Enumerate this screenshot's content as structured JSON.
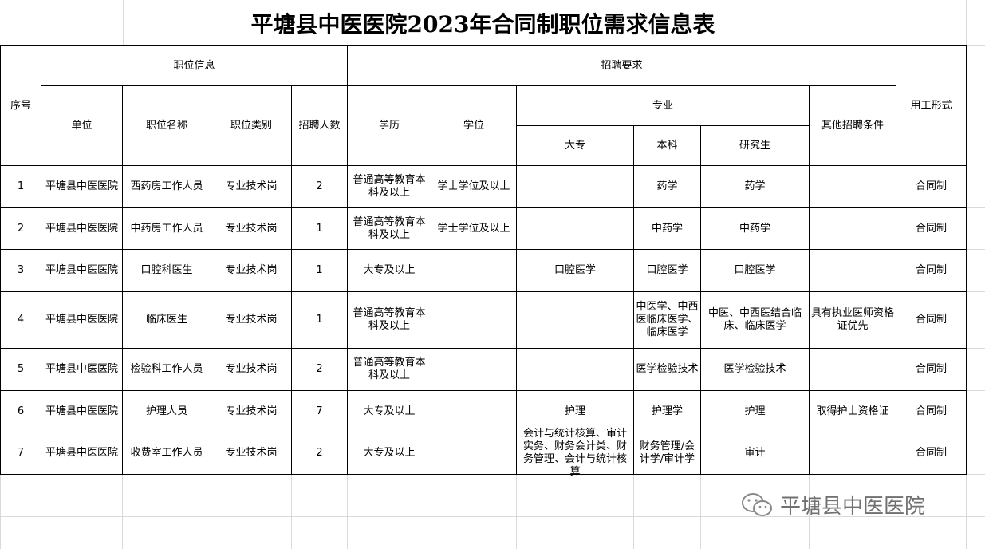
{
  "title": "平塘县中医医院2023年合同制职位需求信息表",
  "header": {
    "seq": "序号",
    "position_info": "职位信息",
    "unit": "单位",
    "position_name": "职位名称",
    "position_category": "职位类别",
    "hire_count": "招聘人数",
    "requirements": "招聘要求",
    "education": "学历",
    "degree": "学位",
    "major": "专业",
    "junior_college": "大专",
    "bachelor": "本科",
    "graduate": "研究生",
    "other_conditions": "其他招聘条件",
    "employment_form": "用工形式"
  },
  "rows": [
    [
      1,
      "平塘县中医医院",
      "西药房工作人员",
      "专业技术岗",
      2,
      "普通高等教育本科及以上",
      "学士学位及以上",
      null,
      "药学",
      "药学",
      null,
      "合同制"
    ],
    [
      2,
      "平塘县中医医院",
      "中药房工作人员",
      "专业技术岗",
      1,
      "普通高等教育本科及以上",
      "学士学位及以上",
      null,
      "中药学",
      "中药学",
      null,
      "合同制"
    ],
    [
      3,
      "平塘县中医医院",
      "口腔科医生",
      "专业技术岗",
      1,
      "大专及以上",
      null,
      "口腔医学",
      "口腔医学",
      "口腔医学",
      null,
      "合同制"
    ],
    [
      4,
      "平塘县中医医院",
      "临床医生",
      "专业技术岗",
      1,
      "普通高等教育本科及以上",
      null,
      null,
      "中医学、中西医临床医学、临床医学",
      "中医、中西医结合临床、临床医学",
      "具有执业医师资格证优先",
      "合同制"
    ],
    [
      5,
      "平塘县中医医院",
      "检验科工作人员",
      "专业技术岗",
      2,
      "普通高等教育本科及以上",
      null,
      null,
      "医学检验技术",
      "医学检验技术",
      null,
      "合同制"
    ],
    [
      6,
      "平塘县中医医院",
      "护理人员",
      "专业技术岗",
      7,
      "大专及以上",
      null,
      "护理",
      "护理学",
      "护理",
      "取得护士资格证",
      "合同制"
    ],
    [
      7,
      "平塘县中医医院",
      "收费室工作人员",
      "专业技术岗",
      2,
      "大专及以上",
      null,
      "会计与统计核算、审计实务、财务会计类、财务管理、会计与统计核算",
      "财务管理/会计学/审计学",
      "审计",
      null,
      "合同制"
    ]
  ],
  "watermark": "平塘县中医医院"
}
